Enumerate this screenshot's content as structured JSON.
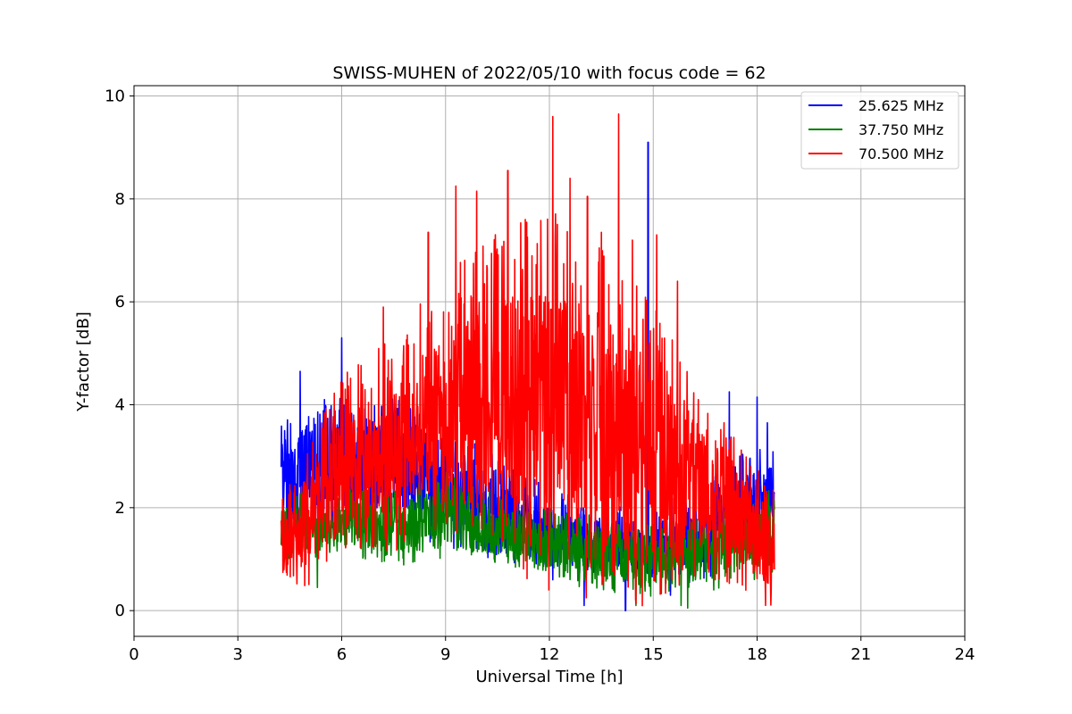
{
  "chart_data": {
    "type": "line",
    "title": "SWISS-MUHEN of 2022/05/10 with focus code = 62",
    "xlabel": "Universal Time [h]",
    "ylabel": "Y-factor [dB]",
    "xlim": [
      0,
      24
    ],
    "ylim": [
      -0.5,
      10.2
    ],
    "xticks": [
      0,
      3,
      6,
      9,
      12,
      15,
      18,
      21,
      24
    ],
    "yticks": [
      0,
      2,
      4,
      6,
      8,
      10
    ],
    "grid": true,
    "legend_position": "top-right",
    "data_start": 4.25,
    "data_end": 18.5,
    "series": [
      {
        "name": "25.625 MHz",
        "color": "#0000ff",
        "profile": {
          "x": [
            4.25,
            5.0,
            6.0,
            7.5,
            9.0,
            10.5,
            12.0,
            13.5,
            15.0,
            16.5,
            17.5,
            18.5
          ],
          "low": [
            1.6,
            1.8,
            2.0,
            1.9,
            1.6,
            1.3,
            1.0,
            0.9,
            0.7,
            0.9,
            1.4,
            1.6
          ],
          "high": [
            3.2,
            3.3,
            3.6,
            3.6,
            3.0,
            2.6,
            2.0,
            1.8,
            1.6,
            2.2,
            2.6,
            2.8
          ]
        },
        "spikes": [
          [
            4.8,
            4.65
          ],
          [
            6.0,
            5.3
          ],
          [
            5.5,
            4.1
          ],
          [
            14.85,
            9.1
          ],
          [
            17.2,
            4.25
          ],
          [
            18.0,
            4.15
          ],
          [
            18.3,
            3.65
          ],
          [
            12.1,
            0.6
          ],
          [
            14.2,
            0.0
          ],
          [
            15.5,
            0.3
          ],
          [
            13.0,
            0.1
          ]
        ]
      },
      {
        "name": "37.750 MHz",
        "color": "#008000",
        "profile": {
          "x": [
            4.25,
            5.0,
            6.0,
            7.5,
            9.0,
            10.5,
            12.0,
            13.5,
            15.0,
            16.5,
            17.5,
            18.5
          ],
          "low": [
            1.2,
            1.1,
            1.3,
            1.1,
            1.2,
            1.1,
            0.8,
            0.6,
            0.5,
            0.6,
            0.8,
            0.9
          ],
          "high": [
            2.0,
            2.0,
            2.1,
            2.0,
            2.3,
            2.0,
            1.7,
            1.5,
            1.4,
            1.6,
            1.9,
            2.0
          ]
        },
        "spikes": [
          [
            8.7,
            2.6
          ],
          [
            15.8,
            0.1
          ],
          [
            14.5,
            0.1
          ],
          [
            5.3,
            0.45
          ],
          [
            16.0,
            0.05
          ]
        ]
      },
      {
        "name": "70.500 MHz",
        "color": "#ff0000",
        "profile": {
          "x": [
            4.25,
            5.0,
            6.0,
            7.5,
            9.0,
            10.5,
            12.0,
            13.5,
            15.0,
            16.5,
            17.5,
            18.5
          ],
          "low": [
            0.8,
            0.9,
            1.5,
            1.8,
            2.0,
            1.9,
            1.5,
            1.2,
            1.0,
            1.2,
            0.9,
            0.3
          ],
          "high": [
            1.8,
            2.6,
            3.8,
            4.4,
            5.4,
            6.0,
            6.2,
            5.6,
            4.8,
            3.6,
            2.7,
            1.8
          ]
        },
        "spikes": [
          [
            8.5,
            7.35
          ],
          [
            9.3,
            8.25
          ],
          [
            9.9,
            8.15
          ],
          [
            10.8,
            8.55
          ],
          [
            11.3,
            7.6
          ],
          [
            12.1,
            9.6
          ],
          [
            12.6,
            8.4
          ],
          [
            13.1,
            8.05
          ],
          [
            13.5,
            7.35
          ],
          [
            14.0,
            9.65
          ],
          [
            14.4,
            7.2
          ],
          [
            15.1,
            7.3
          ],
          [
            7.2,
            5.9
          ],
          [
            6.6,
            4.4
          ],
          [
            16.3,
            4.1
          ],
          [
            15.7,
            6.4
          ],
          [
            16.8,
            3.3
          ]
        ]
      }
    ]
  }
}
